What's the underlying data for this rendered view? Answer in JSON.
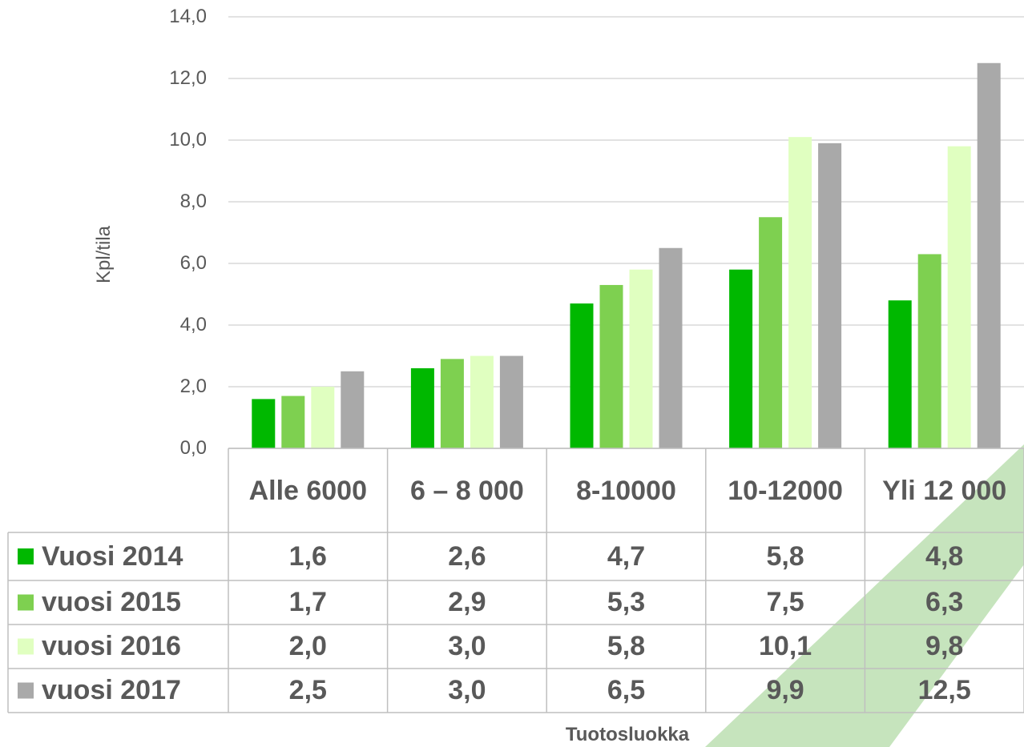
{
  "chart_data": {
    "type": "bar",
    "y_label": "Kpl/tila",
    "x_label": "Tuotosluokka",
    "categories": [
      "Alle 6000",
      "6 – 8 000",
      "8-10000",
      "10-12000",
      "Yli 12 000"
    ],
    "series": [
      {
        "name": "Vuosi 2014",
        "color": "#00b800",
        "values": [
          1.6,
          2.6,
          4.7,
          5.8,
          4.8
        ],
        "value_labels": [
          "1,6",
          "2,6",
          "4,7",
          "5,8",
          "4,8"
        ]
      },
      {
        "name": "vuosi 2015",
        "color": "#7ed050",
        "values": [
          1.7,
          2.9,
          5.3,
          7.5,
          6.3
        ],
        "value_labels": [
          "1,7",
          "2,9",
          "5,3",
          "7,5",
          "6,3"
        ]
      },
      {
        "name": "vuosi 2016",
        "color": "#e0ffc0",
        "values": [
          2.0,
          3.0,
          5.8,
          10.1,
          9.8
        ],
        "value_labels": [
          "2,0",
          "3,0",
          "5,8",
          "10,1",
          "9,8"
        ]
      },
      {
        "name": "vuosi 2017",
        "color": "#a9a9a9",
        "values": [
          2.5,
          3.0,
          6.5,
          9.9,
          12.5
        ],
        "value_labels": [
          "2,5",
          "3,0",
          "6,5",
          "9,9",
          "12,5"
        ]
      }
    ],
    "ylim": [
      0,
      14
    ],
    "yticks": [
      {
        "value": 0,
        "label": "0,0"
      },
      {
        "value": 2,
        "label": "2,0"
      },
      {
        "value": 4,
        "label": "4,0"
      },
      {
        "value": 6,
        "label": "6,0"
      },
      {
        "value": 8,
        "label": "8,0"
      },
      {
        "value": 10,
        "label": "10,0"
      },
      {
        "value": 12,
        "label": "12,0"
      },
      {
        "value": 14,
        "label": "14,0"
      }
    ],
    "grid": true
  }
}
